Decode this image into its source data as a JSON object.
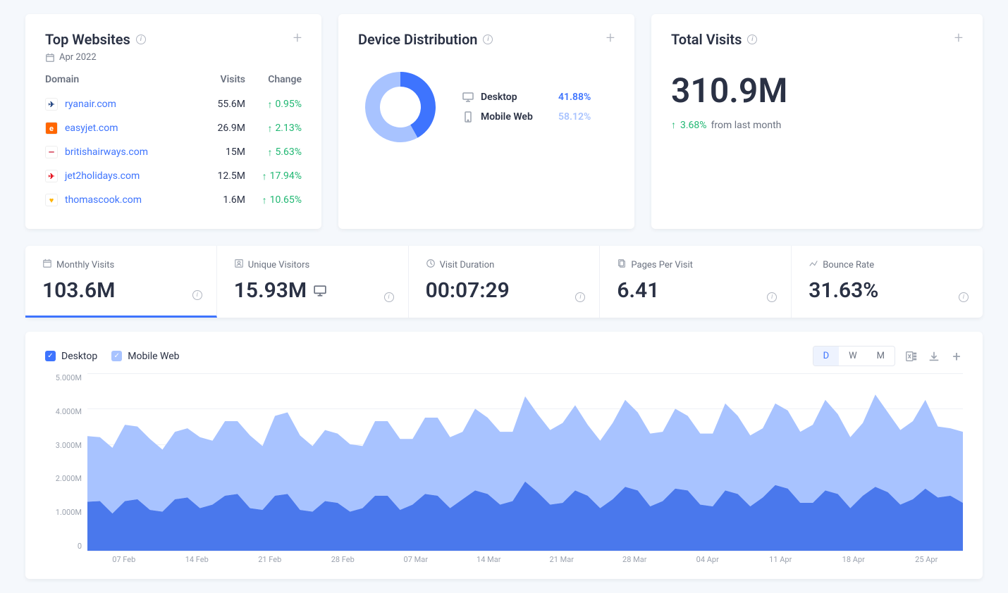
{
  "top_websites": {
    "title": "Top Websites",
    "date": "Apr 2022",
    "headers": {
      "domain": "Domain",
      "visits": "Visits",
      "change": "Change"
    },
    "rows": [
      {
        "domain": "ryanair.com",
        "visits": "55.6M",
        "change": "0.95%",
        "favicon_bg": "#ffffff",
        "favicon_text": "✈",
        "favicon_color": "#1a3d7c"
      },
      {
        "domain": "easyjet.com",
        "visits": "26.9M",
        "change": "2.13%",
        "favicon_bg": "#ff6600",
        "favicon_text": "e",
        "favicon_color": "#ffffff"
      },
      {
        "domain": "britishairways.com",
        "visits": "15M",
        "change": "5.63%",
        "favicon_bg": "#ffffff",
        "favicon_text": "—",
        "favicon_color": "#c8102e"
      },
      {
        "domain": "jet2holidays.com",
        "visits": "12.5M",
        "change": "17.94%",
        "favicon_bg": "#ffffff",
        "favicon_text": "✈",
        "favicon_color": "#e30613"
      },
      {
        "domain": "thomascook.com",
        "visits": "1.6M",
        "change": "10.65%",
        "favicon_bg": "#ffffff",
        "favicon_text": "♥",
        "favicon_color": "#ffb300"
      }
    ]
  },
  "device_distribution": {
    "title": "Device Distribution",
    "donut": {
      "slices": [
        {
          "label": "Desktop",
          "value": 41.88,
          "color": "#3e74fe"
        },
        {
          "label": "Mobile Web",
          "value": 58.12,
          "color": "#a8c3ff"
        }
      ],
      "inner_radius_pct": 58
    },
    "items": [
      {
        "label": "Desktop",
        "pct": "41.88%",
        "pct_color": "#3e74fe",
        "icon": "desktop"
      },
      {
        "label": "Mobile Web",
        "pct": "58.12%",
        "pct_color": "#a8c3ff",
        "icon": "mobile"
      }
    ]
  },
  "total_visits": {
    "title": "Total Visits",
    "value": "310.9M",
    "change_pct": "3.68%",
    "change_suffix": "from last month"
  },
  "kpis": [
    {
      "label": "Monthly Visits",
      "value": "103.6M",
      "icon": "calendar",
      "active": true
    },
    {
      "label": "Unique Visitors",
      "value": "15.93M",
      "icon": "user",
      "extra_icon": "desktop"
    },
    {
      "label": "Visit Duration",
      "value": "00:07:29",
      "icon": "clock"
    },
    {
      "label": "Pages Per Visit",
      "value": "6.41",
      "icon": "pages"
    },
    {
      "label": "Bounce Rate",
      "value": "31.63%",
      "icon": "bounce"
    }
  ],
  "chart": {
    "legend": [
      {
        "label": "Desktop",
        "color": "#3e74fe",
        "checked": true
      },
      {
        "label": "Mobile Web",
        "color": "#a8c3ff",
        "checked": true
      }
    ],
    "time_buttons": [
      {
        "label": "D",
        "active": true
      },
      {
        "label": "W",
        "active": false
      },
      {
        "label": "M",
        "active": false
      }
    ],
    "y_axis": {
      "min": 0,
      "max": 5.0,
      "ticks": [
        "5.000M",
        "4.000M",
        "3.000M",
        "2.000M",
        "1.000M",
        "0"
      ]
    },
    "x_axis": [
      "07 Feb",
      "14 Feb",
      "21 Feb",
      "28 Feb",
      "07 Mar",
      "14 Mar",
      "21 Mar",
      "28 Mar",
      "04 Apr",
      "11 Apr",
      "18 Apr",
      "25 Apr"
    ],
    "series": {
      "desktop_color": "#4a78ec",
      "mobile_color": "#a8c3ff",
      "desktop": [
        1.38,
        1.4,
        1.05,
        1.4,
        1.45,
        1.15,
        1.1,
        1.45,
        1.5,
        1.2,
        1.3,
        1.55,
        1.6,
        1.2,
        1.15,
        1.55,
        1.6,
        1.15,
        1.1,
        1.4,
        1.35,
        1.1,
        1.2,
        1.55,
        1.55,
        1.15,
        1.3,
        1.6,
        1.55,
        1.2,
        1.45,
        1.7,
        1.6,
        1.3,
        1.4,
        1.95,
        1.65,
        1.3,
        1.35,
        1.7,
        1.55,
        1.2,
        1.45,
        1.8,
        1.7,
        1.25,
        1.4,
        1.75,
        1.7,
        1.3,
        1.25,
        1.7,
        1.6,
        1.25,
        1.5,
        1.85,
        1.75,
        1.35,
        1.35,
        1.7,
        1.6,
        1.2,
        1.55,
        1.8,
        1.65,
        1.3,
        1.45,
        1.75,
        1.5,
        1.55,
        1.35
      ],
      "mobile": [
        1.85,
        1.8,
        1.85,
        2.15,
        2.05,
        2.0,
        1.75,
        1.9,
        1.95,
        2.0,
        1.8,
        2.1,
        2.05,
        2.05,
        1.8,
        2.25,
        2.3,
        2.1,
        1.85,
        2.0,
        1.95,
        1.9,
        1.75,
        2.1,
        2.1,
        2.0,
        1.85,
        2.15,
        2.2,
        2.0,
        1.9,
        2.3,
        2.15,
        2.05,
        1.95,
        2.4,
        2.2,
        2.1,
        2.25,
        2.4,
        2.0,
        1.9,
        2.15,
        2.45,
        2.2,
        2.05,
        1.95,
        2.25,
        2.1,
        2.0,
        2.05,
        2.45,
        2.2,
        2.0,
        1.95,
        2.3,
        2.2,
        2.0,
        2.2,
        2.55,
        2.25,
        2.0,
        2.05,
        2.6,
        2.25,
        2.1,
        2.2,
        2.5,
        2.0,
        1.9,
        2.0
      ]
    }
  }
}
